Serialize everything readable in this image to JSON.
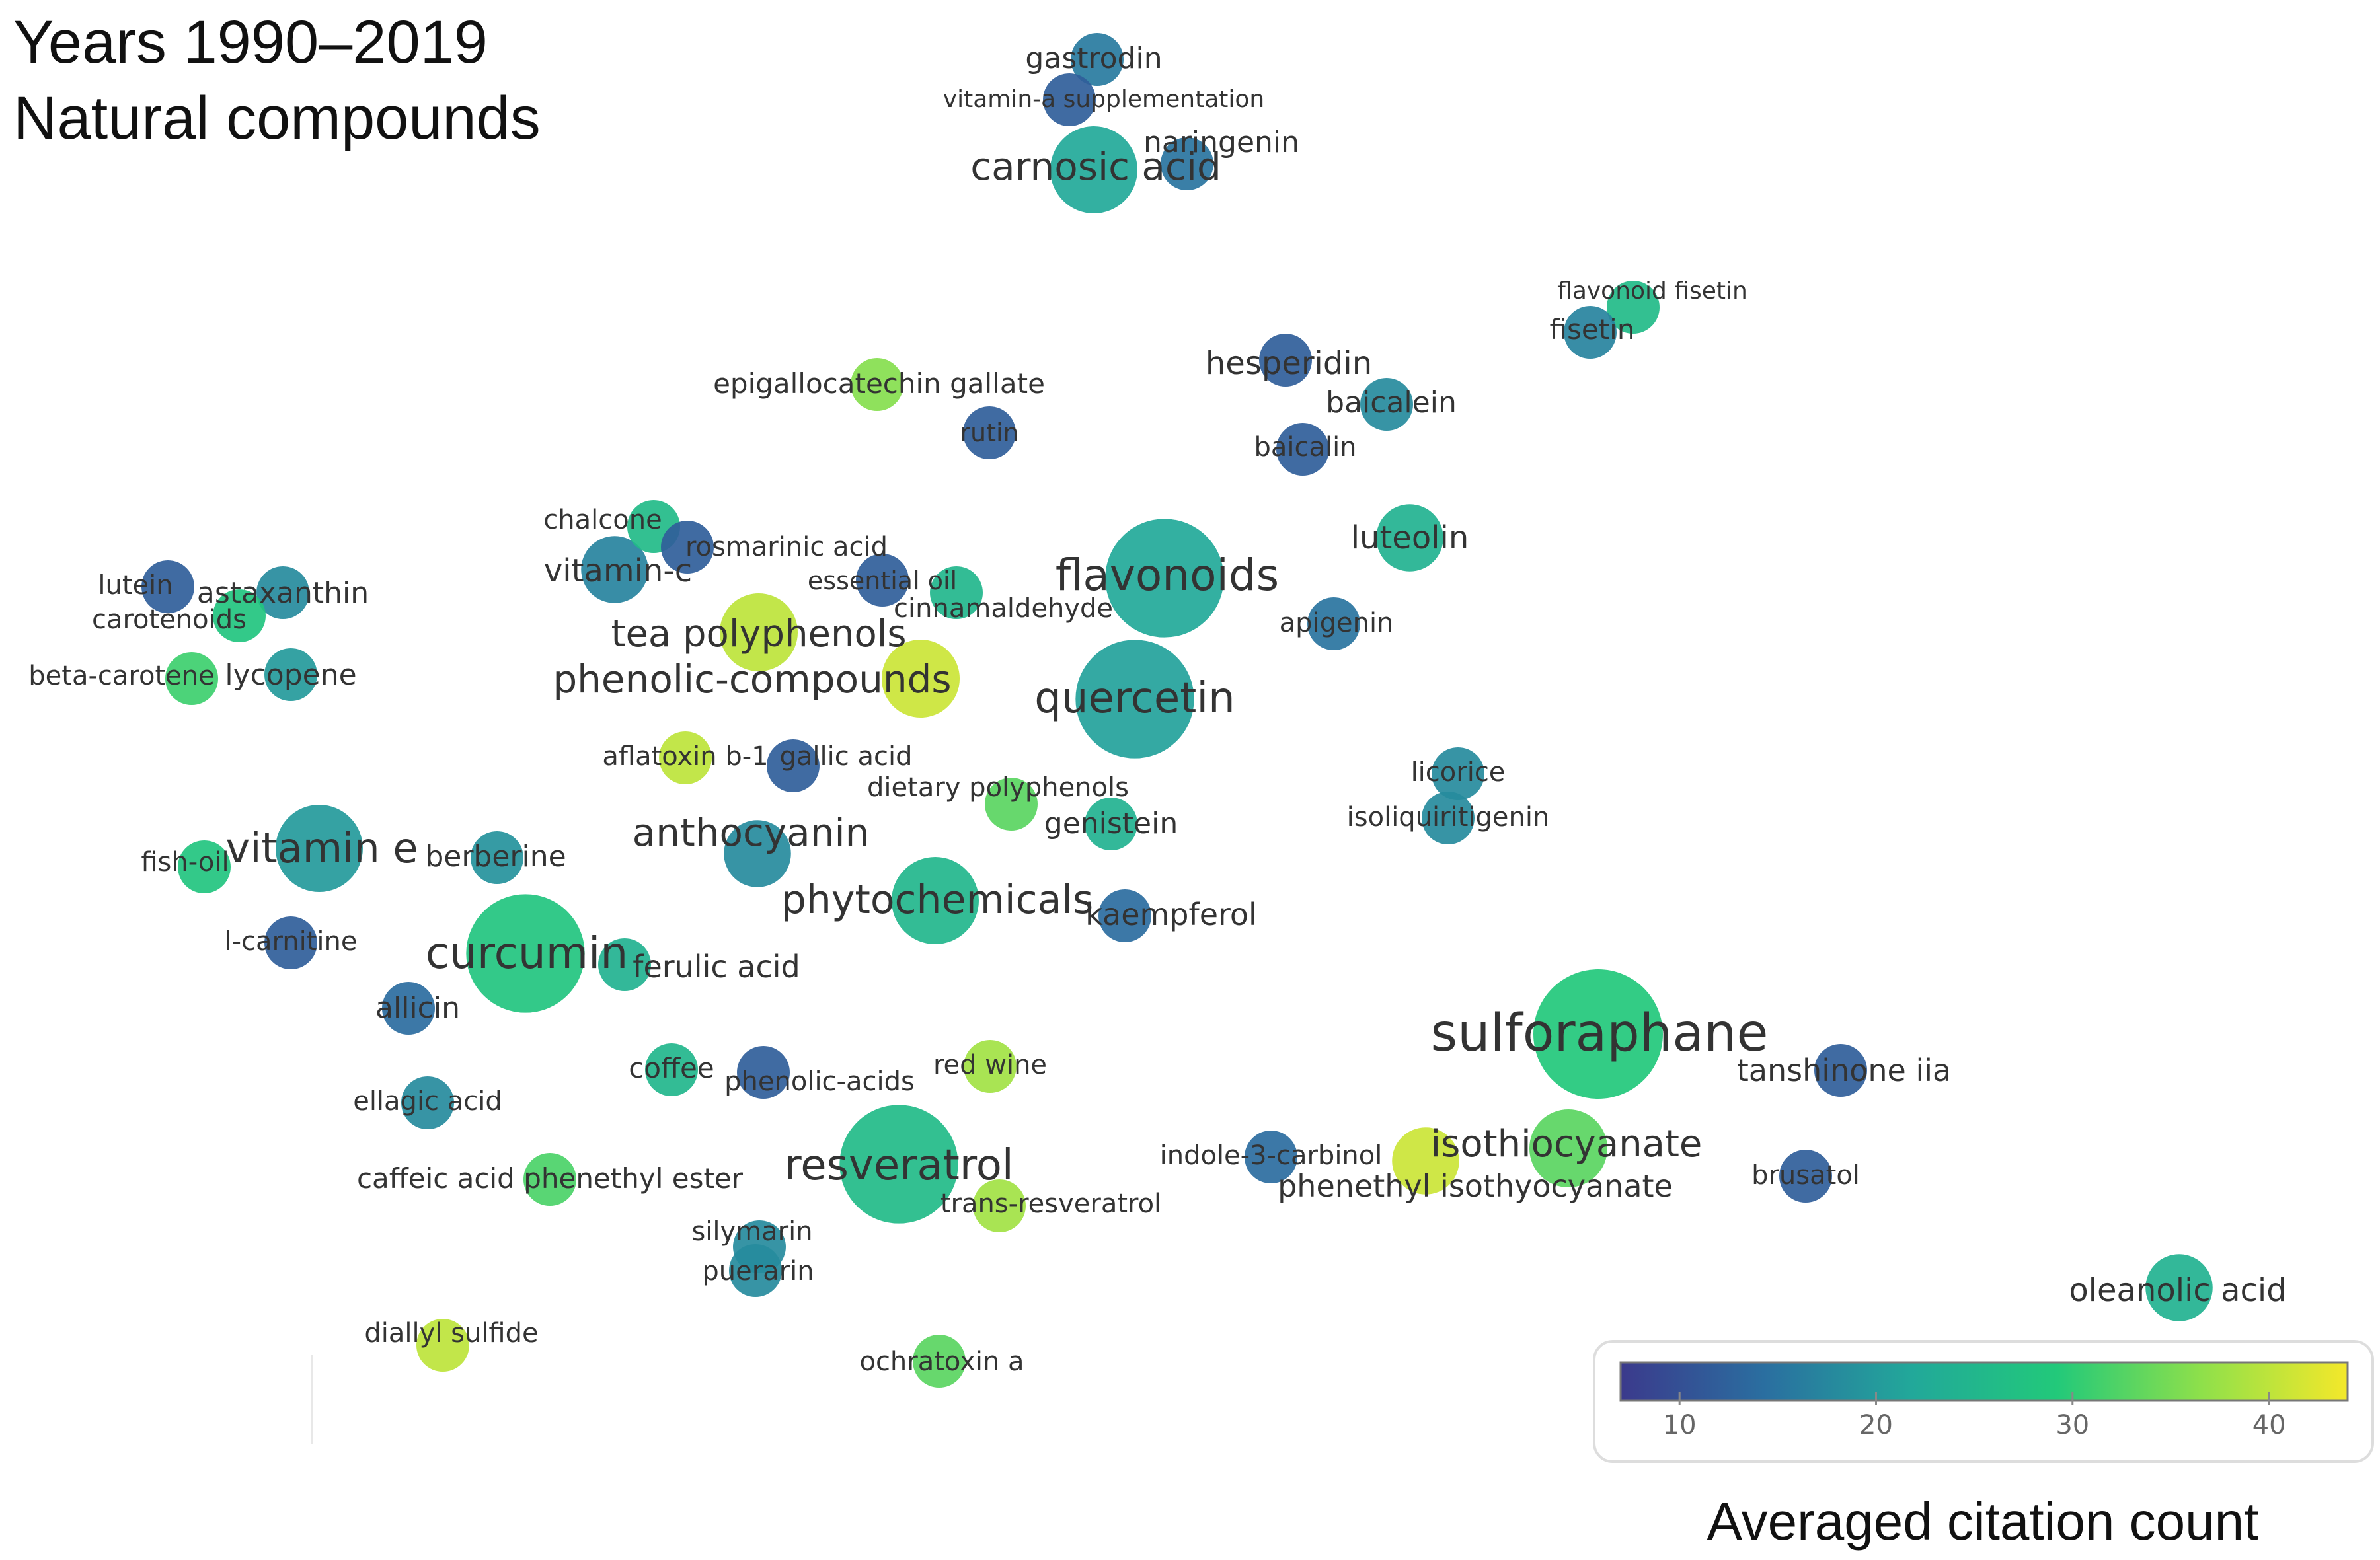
{
  "chart_data": {
    "type": "scatter",
    "subtype": "bibliometric-network-overlay-map",
    "title_lines": [
      "Years 1990–2019",
      "Natural compounds"
    ],
    "colorbar": {
      "title": "Averaged citation count",
      "ticks": [
        10,
        20,
        30,
        40
      ],
      "range": [
        7,
        44
      ],
      "stops": [
        "#3b3a8c",
        "#2a6fa0",
        "#22a89a",
        "#22c97a",
        "#8fe04a",
        "#f4e82a"
      ]
    },
    "nodes": [
      {
        "label": "gastrodin",
        "citations": 16,
        "weight": 1
      },
      {
        "label": "vitamin-a supplementation",
        "citations": 12,
        "weight": 1
      },
      {
        "label": "carnosic acid",
        "citations": 22,
        "weight": 4
      },
      {
        "label": "naringenin",
        "citations": 15,
        "weight": 1
      },
      {
        "label": "flavonoid fisetin",
        "citations": 26,
        "weight": 1
      },
      {
        "label": "fisetin",
        "citations": 17,
        "weight": 1
      },
      {
        "label": "hesperidin",
        "citations": 12,
        "weight": 1
      },
      {
        "label": "baicalein",
        "citations": 18,
        "weight": 1
      },
      {
        "label": "baicalin",
        "citations": 12,
        "weight": 1
      },
      {
        "label": "epigallocatechin gallate",
        "citations": 36,
        "weight": 1
      },
      {
        "label": "rutin",
        "citations": 12,
        "weight": 1
      },
      {
        "label": "chalcone",
        "citations": 26,
        "weight": 1
      },
      {
        "label": "rosmarinic acid",
        "citations": 12,
        "weight": 1
      },
      {
        "label": "luteolin",
        "citations": 24,
        "weight": 2
      },
      {
        "label": "vitamin-c",
        "citations": 17,
        "weight": 2
      },
      {
        "label": "essential oil",
        "citations": 12,
        "weight": 1
      },
      {
        "label": "flavonoids",
        "citations": 22,
        "weight": 6
      },
      {
        "label": "cinnamaldehyde",
        "citations": 25,
        "weight": 1
      },
      {
        "label": "lutein",
        "citations": 12,
        "weight": 1
      },
      {
        "label": "astaxanthin",
        "citations": 18,
        "weight": 1
      },
      {
        "label": "carotenoids",
        "citations": 28,
        "weight": 1
      },
      {
        "label": "apigenin",
        "citations": 15,
        "weight": 1
      },
      {
        "label": "tea polyphenols",
        "citations": 40,
        "weight": 3
      },
      {
        "label": "phenolic-compounds",
        "citations": 41,
        "weight": 3
      },
      {
        "label": "beta-carotene",
        "citations": 31,
        "weight": 1
      },
      {
        "label": "lycopene",
        "citations": 20,
        "weight": 1
      },
      {
        "label": "quercetin",
        "citations": 21,
        "weight": 6
      },
      {
        "label": "aflatoxin b-1",
        "citations": 40,
        "weight": 1
      },
      {
        "label": "gallic acid",
        "citations": 12,
        "weight": 1
      },
      {
        "label": "licorice",
        "citations": 18,
        "weight": 1
      },
      {
        "label": "dietary polyphenols",
        "citations": 33,
        "weight": 1
      },
      {
        "label": "isoliquiritigenin",
        "citations": 18,
        "weight": 1
      },
      {
        "label": "genistein",
        "citations": 24,
        "weight": 1
      },
      {
        "label": "anthocyanin",
        "citations": 18,
        "weight": 2
      },
      {
        "label": "fish-oil",
        "citations": 28,
        "weight": 1
      },
      {
        "label": "vitamin e",
        "citations": 20,
        "weight": 4
      },
      {
        "label": "berberine",
        "citations": 19,
        "weight": 1
      },
      {
        "label": "phytochemicals",
        "citations": 25,
        "weight": 4
      },
      {
        "label": "kaempferol",
        "citations": 14,
        "weight": 1
      },
      {
        "label": "l-carnitine",
        "citations": 12,
        "weight": 1
      },
      {
        "label": "curcumin",
        "citations": 28,
        "weight": 6
      },
      {
        "label": "ferulic acid",
        "citations": 24,
        "weight": 1
      },
      {
        "label": "allicin",
        "citations": 14,
        "weight": 1
      },
      {
        "label": "sulforaphane",
        "citations": 29,
        "weight": 10
      },
      {
        "label": "coffee",
        "citations": 25,
        "weight": 1
      },
      {
        "label": "phenolic-acids",
        "citations": 12,
        "weight": 1
      },
      {
        "label": "red wine",
        "citations": 38,
        "weight": 1
      },
      {
        "label": "tanshinone iia",
        "citations": 12,
        "weight": 1
      },
      {
        "label": "ellagic acid",
        "citations": 18,
        "weight": 1
      },
      {
        "label": "indole-3-carbinol",
        "citations": 14,
        "weight": 1
      },
      {
        "label": "isothiocyanate",
        "citations": 33,
        "weight": 3
      },
      {
        "label": "resveratrol",
        "citations": 26,
        "weight": 6
      },
      {
        "label": "caffeic acid phenethyl ester",
        "citations": 32,
        "weight": 1
      },
      {
        "label": "phenethyl isothyocyanate",
        "citations": 41,
        "weight": 2
      },
      {
        "label": "brusatol",
        "citations": 12,
        "weight": 1
      },
      {
        "label": "trans-resveratrol",
        "citations": 38,
        "weight": 1
      },
      {
        "label": "silymarin",
        "citations": 18,
        "weight": 1
      },
      {
        "label": "puerarin",
        "citations": 18,
        "weight": 1
      },
      {
        "label": "oleanolic acid",
        "citations": 24,
        "weight": 2
      },
      {
        "label": "diallyl sulfide",
        "citations": 40,
        "weight": 1
      },
      {
        "label": "ochratoxin a",
        "citations": 33,
        "weight": 1
      }
    ]
  }
}
